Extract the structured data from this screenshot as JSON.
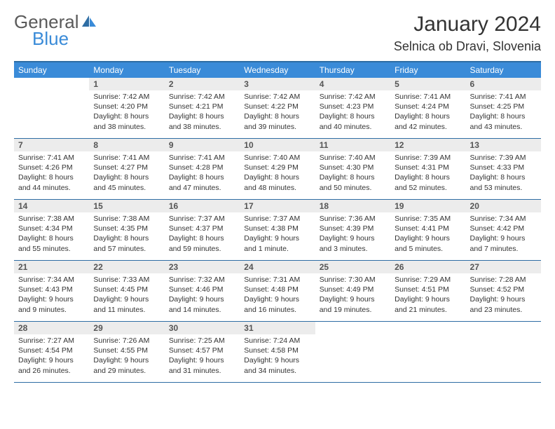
{
  "logo": {
    "line1a": "General",
    "line2": "Blue"
  },
  "title": "January 2024",
  "location": "Selnica ob Dravi, Slovenia",
  "colors": {
    "header_bg": "#3a8bd8",
    "header_border": "#2e6da4",
    "daynum_bg": "#ececec",
    "text": "#333333",
    "logo_gray": "#5a5a5a",
    "logo_blue": "#3a8bd8"
  },
  "dayNames": [
    "Sunday",
    "Monday",
    "Tuesday",
    "Wednesday",
    "Thursday",
    "Friday",
    "Saturday"
  ],
  "weeks": [
    [
      {
        "num": "",
        "lines": []
      },
      {
        "num": "1",
        "lines": [
          "Sunrise: 7:42 AM",
          "Sunset: 4:20 PM",
          "Daylight: 8 hours",
          "and 38 minutes."
        ]
      },
      {
        "num": "2",
        "lines": [
          "Sunrise: 7:42 AM",
          "Sunset: 4:21 PM",
          "Daylight: 8 hours",
          "and 38 minutes."
        ]
      },
      {
        "num": "3",
        "lines": [
          "Sunrise: 7:42 AM",
          "Sunset: 4:22 PM",
          "Daylight: 8 hours",
          "and 39 minutes."
        ]
      },
      {
        "num": "4",
        "lines": [
          "Sunrise: 7:42 AM",
          "Sunset: 4:23 PM",
          "Daylight: 8 hours",
          "and 40 minutes."
        ]
      },
      {
        "num": "5",
        "lines": [
          "Sunrise: 7:41 AM",
          "Sunset: 4:24 PM",
          "Daylight: 8 hours",
          "and 42 minutes."
        ]
      },
      {
        "num": "6",
        "lines": [
          "Sunrise: 7:41 AM",
          "Sunset: 4:25 PM",
          "Daylight: 8 hours",
          "and 43 minutes."
        ]
      }
    ],
    [
      {
        "num": "7",
        "lines": [
          "Sunrise: 7:41 AM",
          "Sunset: 4:26 PM",
          "Daylight: 8 hours",
          "and 44 minutes."
        ]
      },
      {
        "num": "8",
        "lines": [
          "Sunrise: 7:41 AM",
          "Sunset: 4:27 PM",
          "Daylight: 8 hours",
          "and 45 minutes."
        ]
      },
      {
        "num": "9",
        "lines": [
          "Sunrise: 7:41 AM",
          "Sunset: 4:28 PM",
          "Daylight: 8 hours",
          "and 47 minutes."
        ]
      },
      {
        "num": "10",
        "lines": [
          "Sunrise: 7:40 AM",
          "Sunset: 4:29 PM",
          "Daylight: 8 hours",
          "and 48 minutes."
        ]
      },
      {
        "num": "11",
        "lines": [
          "Sunrise: 7:40 AM",
          "Sunset: 4:30 PM",
          "Daylight: 8 hours",
          "and 50 minutes."
        ]
      },
      {
        "num": "12",
        "lines": [
          "Sunrise: 7:39 AM",
          "Sunset: 4:31 PM",
          "Daylight: 8 hours",
          "and 52 minutes."
        ]
      },
      {
        "num": "13",
        "lines": [
          "Sunrise: 7:39 AM",
          "Sunset: 4:33 PM",
          "Daylight: 8 hours",
          "and 53 minutes."
        ]
      }
    ],
    [
      {
        "num": "14",
        "lines": [
          "Sunrise: 7:38 AM",
          "Sunset: 4:34 PM",
          "Daylight: 8 hours",
          "and 55 minutes."
        ]
      },
      {
        "num": "15",
        "lines": [
          "Sunrise: 7:38 AM",
          "Sunset: 4:35 PM",
          "Daylight: 8 hours",
          "and 57 minutes."
        ]
      },
      {
        "num": "16",
        "lines": [
          "Sunrise: 7:37 AM",
          "Sunset: 4:37 PM",
          "Daylight: 8 hours",
          "and 59 minutes."
        ]
      },
      {
        "num": "17",
        "lines": [
          "Sunrise: 7:37 AM",
          "Sunset: 4:38 PM",
          "Daylight: 9 hours",
          "and 1 minute."
        ]
      },
      {
        "num": "18",
        "lines": [
          "Sunrise: 7:36 AM",
          "Sunset: 4:39 PM",
          "Daylight: 9 hours",
          "and 3 minutes."
        ]
      },
      {
        "num": "19",
        "lines": [
          "Sunrise: 7:35 AM",
          "Sunset: 4:41 PM",
          "Daylight: 9 hours",
          "and 5 minutes."
        ]
      },
      {
        "num": "20",
        "lines": [
          "Sunrise: 7:34 AM",
          "Sunset: 4:42 PM",
          "Daylight: 9 hours",
          "and 7 minutes."
        ]
      }
    ],
    [
      {
        "num": "21",
        "lines": [
          "Sunrise: 7:34 AM",
          "Sunset: 4:43 PM",
          "Daylight: 9 hours",
          "and 9 minutes."
        ]
      },
      {
        "num": "22",
        "lines": [
          "Sunrise: 7:33 AM",
          "Sunset: 4:45 PM",
          "Daylight: 9 hours",
          "and 11 minutes."
        ]
      },
      {
        "num": "23",
        "lines": [
          "Sunrise: 7:32 AM",
          "Sunset: 4:46 PM",
          "Daylight: 9 hours",
          "and 14 minutes."
        ]
      },
      {
        "num": "24",
        "lines": [
          "Sunrise: 7:31 AM",
          "Sunset: 4:48 PM",
          "Daylight: 9 hours",
          "and 16 minutes."
        ]
      },
      {
        "num": "25",
        "lines": [
          "Sunrise: 7:30 AM",
          "Sunset: 4:49 PM",
          "Daylight: 9 hours",
          "and 19 minutes."
        ]
      },
      {
        "num": "26",
        "lines": [
          "Sunrise: 7:29 AM",
          "Sunset: 4:51 PM",
          "Daylight: 9 hours",
          "and 21 minutes."
        ]
      },
      {
        "num": "27",
        "lines": [
          "Sunrise: 7:28 AM",
          "Sunset: 4:52 PM",
          "Daylight: 9 hours",
          "and 23 minutes."
        ]
      }
    ],
    [
      {
        "num": "28",
        "lines": [
          "Sunrise: 7:27 AM",
          "Sunset: 4:54 PM",
          "Daylight: 9 hours",
          "and 26 minutes."
        ]
      },
      {
        "num": "29",
        "lines": [
          "Sunrise: 7:26 AM",
          "Sunset: 4:55 PM",
          "Daylight: 9 hours",
          "and 29 minutes."
        ]
      },
      {
        "num": "30",
        "lines": [
          "Sunrise: 7:25 AM",
          "Sunset: 4:57 PM",
          "Daylight: 9 hours",
          "and 31 minutes."
        ]
      },
      {
        "num": "31",
        "lines": [
          "Sunrise: 7:24 AM",
          "Sunset: 4:58 PM",
          "Daylight: 9 hours",
          "and 34 minutes."
        ]
      },
      {
        "num": "",
        "lines": []
      },
      {
        "num": "",
        "lines": []
      },
      {
        "num": "",
        "lines": []
      }
    ]
  ]
}
